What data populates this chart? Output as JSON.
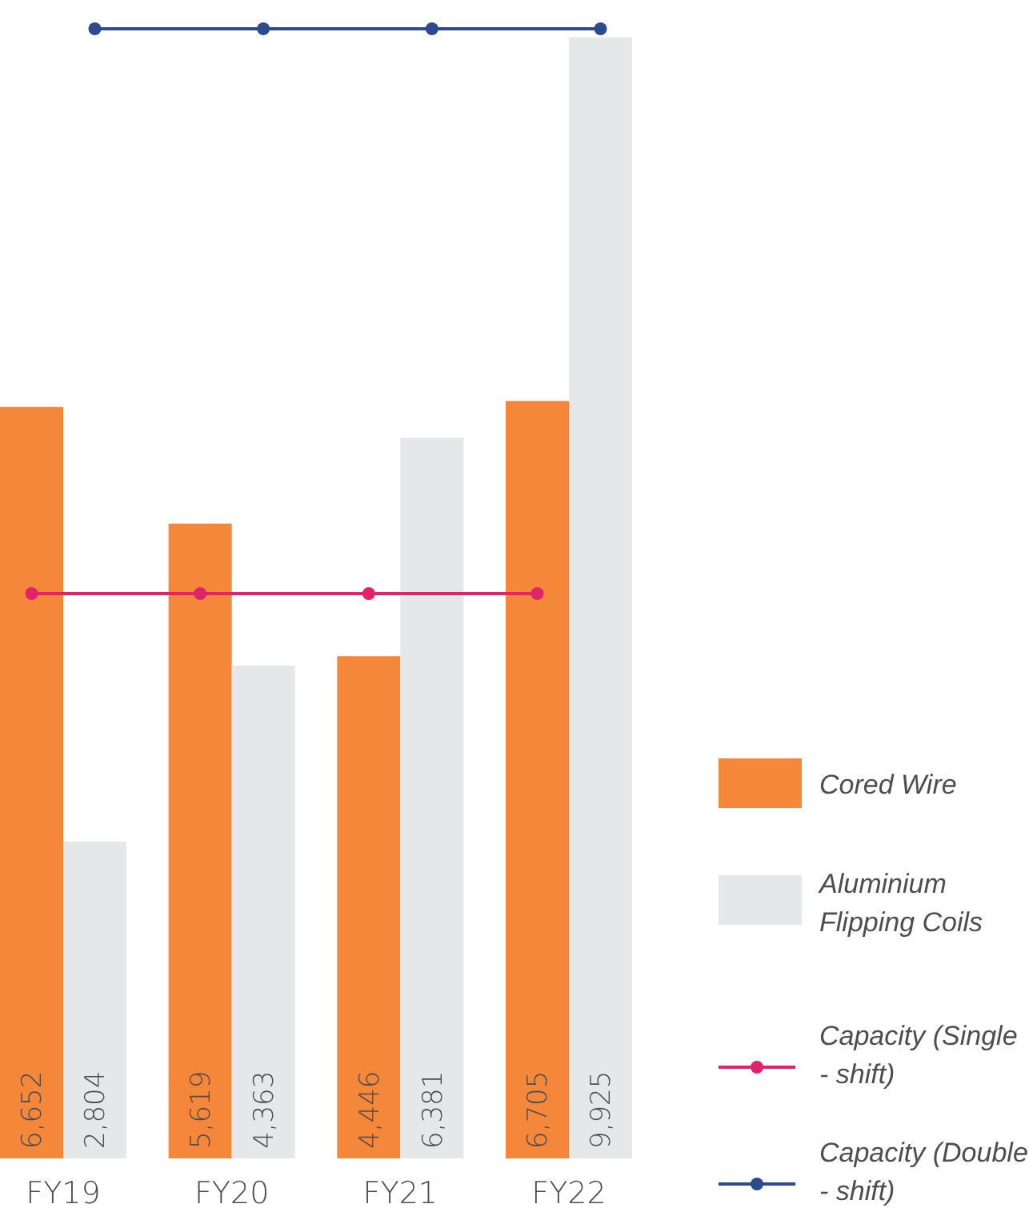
{
  "chart_data": {
    "type": "bar",
    "categories": [
      "FY19",
      "FY20",
      "FY21",
      "FY22"
    ],
    "tick_labels": "x",
    "legend": "bottom right",
    "marker": "circle",
    "series": [
      {
        "name": "Cored Wire",
        "color": "#f5873a",
        "values": [
          6652,
          5619,
          4446,
          6705
        ],
        "value_labels": [
          "6,652",
          "5,619",
          "4,446",
          "6,705"
        ]
      },
      {
        "name": "Aluminium Flipping Coils",
        "color": "#e6e7e9",
        "values": [
          2804,
          4363,
          6381,
          9925
        ],
        "value_labels": [
          "2,804",
          "4,363",
          "6,381",
          "9,925"
        ]
      },
      {
        "name": "Capacity (Single - shift)",
        "type": "line",
        "color": "#e2236b",
        "values": [
          5000,
          5000,
          5000,
          5000
        ]
      },
      {
        "name": "Capacity (Double - shift)",
        "type": "line",
        "color": "#2e4a8f",
        "values": [
          10000,
          10000,
          10000,
          10000
        ]
      }
    ]
  }
}
